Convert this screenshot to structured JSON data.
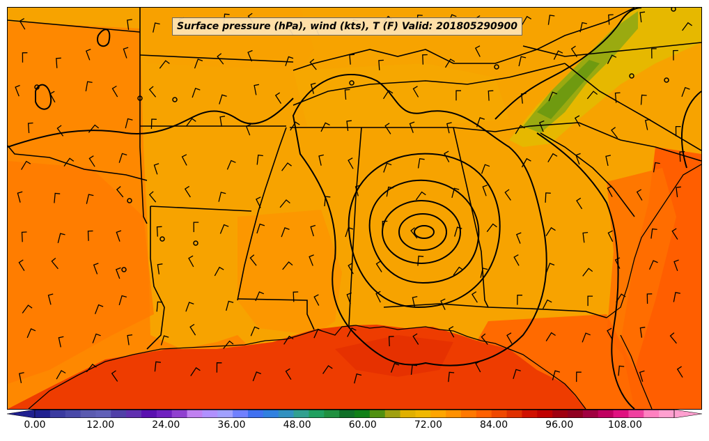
{
  "title": "Surface pressure (hPa), wind (kts), T (F) Valid: 201805290900",
  "colorbar": {
    "min": 0,
    "max": 117,
    "step": 3,
    "tick_labels": [
      "0.00",
      "12.00",
      "24.00",
      "36.00",
      "48.00",
      "60.00",
      "72.00",
      "84.00",
      "96.00",
      "108.00"
    ],
    "colors": [
      "#202090",
      "#3a3aa0",
      "#4848a8",
      "#5a5ab0",
      "#6060b8",
      "#5040a8",
      "#6030b0",
      "#5a10b0",
      "#7020c0",
      "#9040d0",
      "#c080f0",
      "#b090ff",
      "#a0a0ff",
      "#7080ff",
      "#4070f0",
      "#3080e0",
      "#3090c0",
      "#30a090",
      "#20a060",
      "#209040",
      "#107028",
      "#108018",
      "#509010",
      "#a0a010",
      "#e0b000",
      "#f0b800",
      "#ffa500",
      "#ff9000",
      "#ff7800",
      "#ff6000",
      "#f04800",
      "#e03000",
      "#d01000",
      "#c00000",
      "#a00010",
      "#900020",
      "#a00040",
      "#c00060",
      "#e01080",
      "#f040a0",
      "#ff80c0",
      "#ffa0d0"
    ]
  },
  "colors": {
    "base": "#f7a300",
    "warm": "#ff7f00",
    "hot": "#ff5a00",
    "gulf": "#f03a00",
    "cool": "#e6b800",
    "green": "#7faa10"
  },
  "legend_placement": "bottom"
}
